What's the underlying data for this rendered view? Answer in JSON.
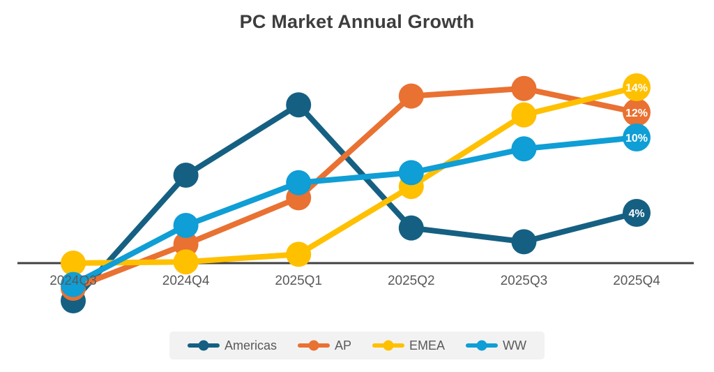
{
  "title": "PC Market Annual Growth",
  "colors": {
    "background": "#ffffff",
    "title_text": "#3d3d3d",
    "axis_line": "#404040",
    "tick_label": "#595959",
    "legend_bg": "#f2f2f2",
    "legend_text": "#595959",
    "end_label_text": "#ffffff"
  },
  "chart_data": {
    "type": "line",
    "title": "PC Market Annual Growth",
    "categories": [
      "2024Q3",
      "2024Q4",
      "2025Q1",
      "2025Q2",
      "2025Q3",
      "2025Q4"
    ],
    "unit": "percent annual growth",
    "ylim": [
      -4,
      16
    ],
    "grid": false,
    "x_axis_at_zero": true,
    "legend_position": "bottom",
    "marker_style": "filled-circle",
    "end_labels_shown": true,
    "series": [
      {
        "name": "Americas",
        "color": "#156082",
        "values": [
          -3.0,
          7.0,
          12.6,
          2.8,
          1.7,
          4.0
        ],
        "end_label": "4%"
      },
      {
        "name": "AP",
        "color": "#E97132",
        "values": [
          -2.0,
          1.5,
          5.2,
          13.3,
          13.9,
          12.0
        ],
        "end_label": "12%"
      },
      {
        "name": "EMEA",
        "color": "#FFC000",
        "values": [
          0.0,
          0.1,
          0.7,
          6.1,
          11.8,
          14.0
        ],
        "end_label": "14%"
      },
      {
        "name": "WW",
        "color": "#0F9ED5",
        "values": [
          -1.7,
          3.0,
          6.4,
          7.2,
          9.1,
          10.0
        ],
        "end_label": "10%"
      }
    ]
  }
}
